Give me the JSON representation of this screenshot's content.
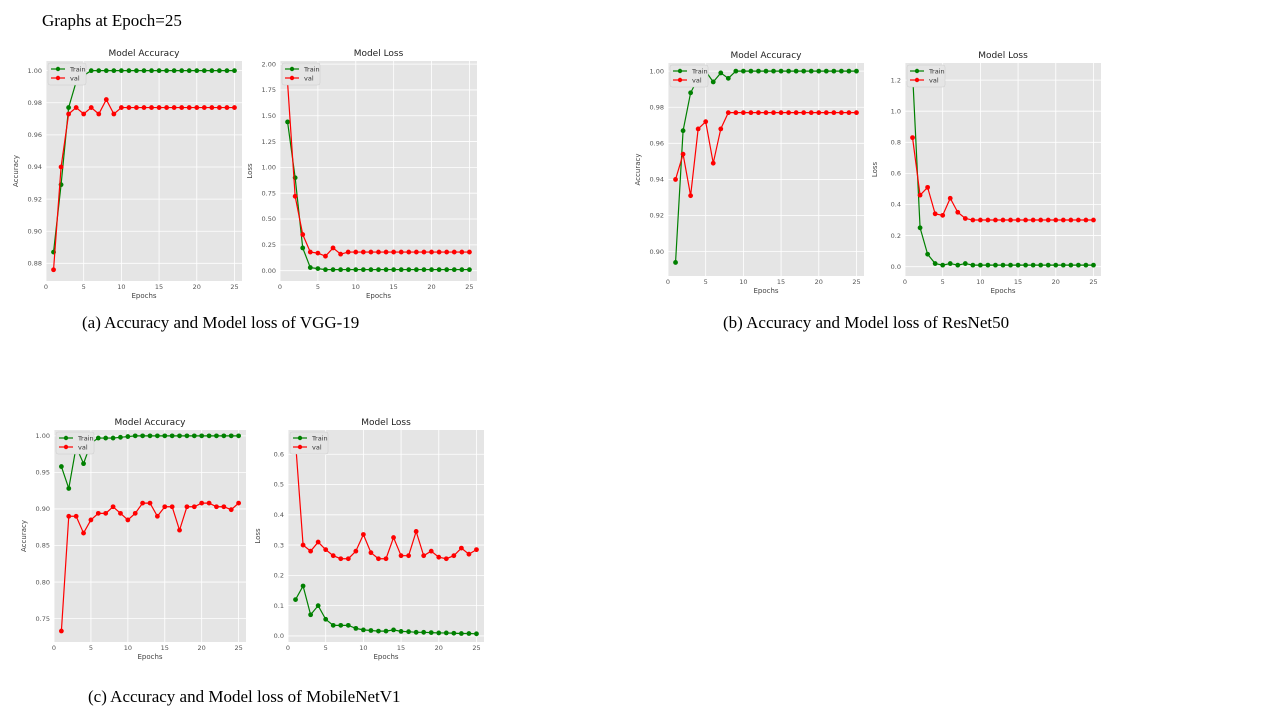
{
  "page_title": "Graphs at Epoch=25",
  "captions": [
    "(a) Accuracy and Model loss of VGG-19",
    "(b) Accuracy and Model loss of ResNet50",
    "(c) Accuracy and Model loss of MobileNetV1"
  ],
  "colors": {
    "train": "#008000",
    "val": "#ff0000",
    "panel_bg": "#e5e5e5",
    "grid": "#ffffff"
  },
  "chart_data": [
    {
      "type": "line",
      "title": "Model Accuracy",
      "xlabel": "Epochs",
      "ylabel": "Accuracy",
      "grid": true,
      "legend": "top-left",
      "x": [
        1,
        2,
        3,
        4,
        5,
        6,
        7,
        8,
        9,
        10,
        11,
        12,
        13,
        14,
        15,
        16,
        17,
        18,
        19,
        20,
        21,
        22,
        23,
        24,
        25
      ],
      "xlim": [
        0,
        26
      ],
      "ylim": [
        0.869,
        1.006
      ],
      "xticks": [
        0,
        5,
        10,
        15,
        20,
        25
      ],
      "xtick_labels": [
        "0",
        "5",
        "10",
        "15",
        "20",
        "25"
      ],
      "yticks": [
        0.88,
        0.9,
        0.92,
        0.94,
        0.96,
        0.98,
        1.0
      ],
      "ytick_labels": [
        "0.88",
        "0.90",
        "0.92",
        "0.94",
        "0.96",
        "0.98",
        "1.00"
      ],
      "series": [
        {
          "name": "Train",
          "values": [
            0.887,
            0.929,
            0.977,
            0.993,
            0.997,
            1.0,
            1.0,
            1.0,
            1.0,
            1.0,
            1.0,
            1.0,
            1.0,
            1.0,
            1.0,
            1.0,
            1.0,
            1.0,
            1.0,
            1.0,
            1.0,
            1.0,
            1.0,
            1.0,
            1.0
          ]
        },
        {
          "name": "val",
          "values": [
            0.876,
            0.94,
            0.973,
            0.977,
            0.973,
            0.977,
            0.973,
            0.982,
            0.973,
            0.977,
            0.977,
            0.977,
            0.977,
            0.977,
            0.977,
            0.977,
            0.977,
            0.977,
            0.977,
            0.977,
            0.977,
            0.977,
            0.977,
            0.977,
            0.977
          ]
        }
      ]
    },
    {
      "type": "line",
      "title": "Model Loss",
      "xlabel": "Epochs",
      "ylabel": "Loss",
      "grid": true,
      "legend": "top-left",
      "x": [
        1,
        2,
        3,
        4,
        5,
        6,
        7,
        8,
        9,
        10,
        11,
        12,
        13,
        14,
        15,
        16,
        17,
        18,
        19,
        20,
        21,
        22,
        23,
        24,
        25
      ],
      "xlim": [
        0,
        26
      ],
      "ylim": [
        -0.1,
        2.03
      ],
      "xticks": [
        0,
        5,
        10,
        15,
        20,
        25
      ],
      "xtick_labels": [
        "0",
        "5",
        "10",
        "15",
        "20",
        "25"
      ],
      "yticks": [
        0,
        0.25,
        0.5,
        0.75,
        1.0,
        1.25,
        1.5,
        1.75,
        2.0
      ],
      "ytick_labels": [
        "0.00",
        "0.25",
        "0.50",
        "0.75",
        "1.00",
        "1.25",
        "1.50",
        "1.75",
        "2.00"
      ],
      "series": [
        {
          "name": "Train",
          "values": [
            1.44,
            0.9,
            0.22,
            0.03,
            0.02,
            0.01,
            0.01,
            0.01,
            0.01,
            0.01,
            0.01,
            0.01,
            0.01,
            0.01,
            0.01,
            0.01,
            0.01,
            0.01,
            0.01,
            0.01,
            0.01,
            0.01,
            0.01,
            0.01,
            0.01
          ]
        },
        {
          "name": "val",
          "values": [
            1.82,
            0.72,
            0.35,
            0.18,
            0.17,
            0.14,
            0.22,
            0.16,
            0.18,
            0.18,
            0.18,
            0.18,
            0.18,
            0.18,
            0.18,
            0.18,
            0.18,
            0.18,
            0.18,
            0.18,
            0.18,
            0.18,
            0.18,
            0.18,
            0.18
          ]
        }
      ]
    },
    {
      "type": "line",
      "title": "Model Accuracy",
      "xlabel": "Epochs",
      "ylabel": "Accuracy",
      "grid": true,
      "legend": "top-left",
      "x": [
        1,
        2,
        3,
        4,
        5,
        6,
        7,
        8,
        9,
        10,
        11,
        12,
        13,
        14,
        15,
        16,
        17,
        18,
        19,
        20,
        21,
        22,
        23,
        24,
        25
      ],
      "xlim": [
        0,
        26
      ],
      "ylim": [
        0.8865,
        1.0045
      ],
      "xticks": [
        0,
        5,
        10,
        15,
        20,
        25
      ],
      "xtick_labels": [
        "0",
        "5",
        "10",
        "15",
        "20",
        "25"
      ],
      "yticks": [
        0.9,
        0.92,
        0.94,
        0.96,
        0.98,
        1.0
      ],
      "ytick_labels": [
        "0.90",
        "0.92",
        "0.94",
        "0.96",
        "0.98",
        "1.00"
      ],
      "series": [
        {
          "name": "Train",
          "values": [
            0.894,
            0.967,
            0.988,
            0.996,
            1.0,
            0.994,
            0.999,
            0.996,
            1.0,
            1.0,
            1.0,
            1.0,
            1.0,
            1.0,
            1.0,
            1.0,
            1.0,
            1.0,
            1.0,
            1.0,
            1.0,
            1.0,
            1.0,
            1.0,
            1.0
          ]
        },
        {
          "name": "val",
          "values": [
            0.94,
            0.954,
            0.931,
            0.968,
            0.972,
            0.949,
            0.968,
            0.977,
            0.977,
            0.977,
            0.977,
            0.977,
            0.977,
            0.977,
            0.977,
            0.977,
            0.977,
            0.977,
            0.977,
            0.977,
            0.977,
            0.977,
            0.977,
            0.977,
            0.977
          ]
        }
      ]
    },
    {
      "type": "line",
      "title": "Model Loss",
      "xlabel": "Epochs",
      "ylabel": "Loss",
      "grid": true,
      "legend": "top-left",
      "x": [
        1,
        2,
        3,
        4,
        5,
        6,
        7,
        8,
        9,
        10,
        11,
        12,
        13,
        14,
        15,
        16,
        17,
        18,
        19,
        20,
        21,
        22,
        23,
        24,
        25
      ],
      "xlim": [
        0,
        26
      ],
      "ylim": [
        -0.06,
        1.31
      ],
      "xticks": [
        0,
        5,
        10,
        15,
        20,
        25
      ],
      "xtick_labels": [
        "0",
        "5",
        "10",
        "15",
        "20",
        "25"
      ],
      "yticks": [
        0,
        0.2,
        0.4,
        0.6,
        0.8,
        1.0,
        1.2
      ],
      "ytick_labels": [
        "0.0",
        "0.2",
        "0.4",
        "0.6",
        "0.8",
        "1.0",
        "1.2"
      ],
      "series": [
        {
          "name": "Train",
          "values": [
            1.25,
            0.25,
            0.08,
            0.02,
            0.01,
            0.02,
            0.01,
            0.02,
            0.01,
            0.01,
            0.01,
            0.01,
            0.01,
            0.01,
            0.01,
            0.01,
            0.01,
            0.01,
            0.01,
            0.01,
            0.01,
            0.01,
            0.01,
            0.01,
            0.01
          ]
        },
        {
          "name": "val",
          "values": [
            0.83,
            0.46,
            0.51,
            0.34,
            0.33,
            0.44,
            0.35,
            0.31,
            0.3,
            0.3,
            0.3,
            0.3,
            0.3,
            0.3,
            0.3,
            0.3,
            0.3,
            0.3,
            0.3,
            0.3,
            0.3,
            0.3,
            0.3,
            0.3,
            0.3
          ]
        }
      ]
    },
    {
      "type": "line",
      "title": "Model Accuracy",
      "xlabel": "Epochs",
      "ylabel": "Accuracy",
      "grid": true,
      "legend": "top-left",
      "x": [
        1,
        2,
        3,
        4,
        5,
        6,
        7,
        8,
        9,
        10,
        11,
        12,
        13,
        14,
        15,
        16,
        17,
        18,
        19,
        20,
        21,
        22,
        23,
        24,
        25
      ],
      "xlim": [
        0,
        26
      ],
      "ylim": [
        0.718,
        1.008
      ],
      "xticks": [
        0,
        5,
        10,
        15,
        20,
        25
      ],
      "xtick_labels": [
        "0",
        "5",
        "10",
        "15",
        "20",
        "25"
      ],
      "yticks": [
        0.75,
        0.8,
        0.85,
        0.9,
        0.95,
        1.0
      ],
      "ytick_labels": [
        "0.75",
        "0.80",
        "0.85",
        "0.90",
        "0.95",
        "1.00"
      ],
      "series": [
        {
          "name": "Train",
          "values": [
            0.958,
            0.928,
            0.985,
            0.962,
            0.99,
            0.997,
            0.997,
            0.997,
            0.998,
            0.999,
            1.0,
            1.0,
            1.0,
            1.0,
            1.0,
            1.0,
            1.0,
            1.0,
            1.0,
            1.0,
            1.0,
            1.0,
            1.0,
            1.0,
            1.0
          ]
        },
        {
          "name": "val",
          "values": [
            0.733,
            0.89,
            0.89,
            0.867,
            0.885,
            0.894,
            0.894,
            0.903,
            0.894,
            0.885,
            0.894,
            0.908,
            0.908,
            0.89,
            0.903,
            0.903,
            0.871,
            0.903,
            0.903,
            0.908,
            0.908,
            0.903,
            0.903,
            0.899,
            0.908
          ]
        }
      ]
    },
    {
      "type": "line",
      "title": "Model Loss",
      "xlabel": "Epochs",
      "ylabel": "Loss",
      "grid": true,
      "legend": "top-left",
      "x": [
        1,
        2,
        3,
        4,
        5,
        6,
        7,
        8,
        9,
        10,
        11,
        12,
        13,
        14,
        15,
        16,
        17,
        18,
        19,
        20,
        21,
        22,
        23,
        24,
        25
      ],
      "xlim": [
        0,
        26
      ],
      "ylim": [
        -0.02,
        0.68
      ],
      "xticks": [
        0,
        5,
        10,
        15,
        20,
        25
      ],
      "xtick_labels": [
        "0",
        "5",
        "10",
        "15",
        "20",
        "25"
      ],
      "yticks": [
        0,
        0.1,
        0.2,
        0.3,
        0.4,
        0.5,
        0.6
      ],
      "ytick_labels": [
        "0.0",
        "0.1",
        "0.2",
        "0.3",
        "0.4",
        "0.5",
        "0.6"
      ],
      "series": [
        {
          "name": "Train",
          "values": [
            0.12,
            0.165,
            0.07,
            0.1,
            0.055,
            0.035,
            0.035,
            0.035,
            0.025,
            0.02,
            0.018,
            0.016,
            0.016,
            0.02,
            0.015,
            0.014,
            0.012,
            0.012,
            0.011,
            0.01,
            0.01,
            0.009,
            0.008,
            0.008,
            0.007
          ]
        },
        {
          "name": "val",
          "values": [
            0.64,
            0.3,
            0.28,
            0.31,
            0.285,
            0.265,
            0.255,
            0.255,
            0.28,
            0.335,
            0.275,
            0.255,
            0.255,
            0.325,
            0.265,
            0.265,
            0.345,
            0.265,
            0.28,
            0.26,
            0.255,
            0.265,
            0.29,
            0.27,
            0.285
          ]
        }
      ]
    }
  ]
}
